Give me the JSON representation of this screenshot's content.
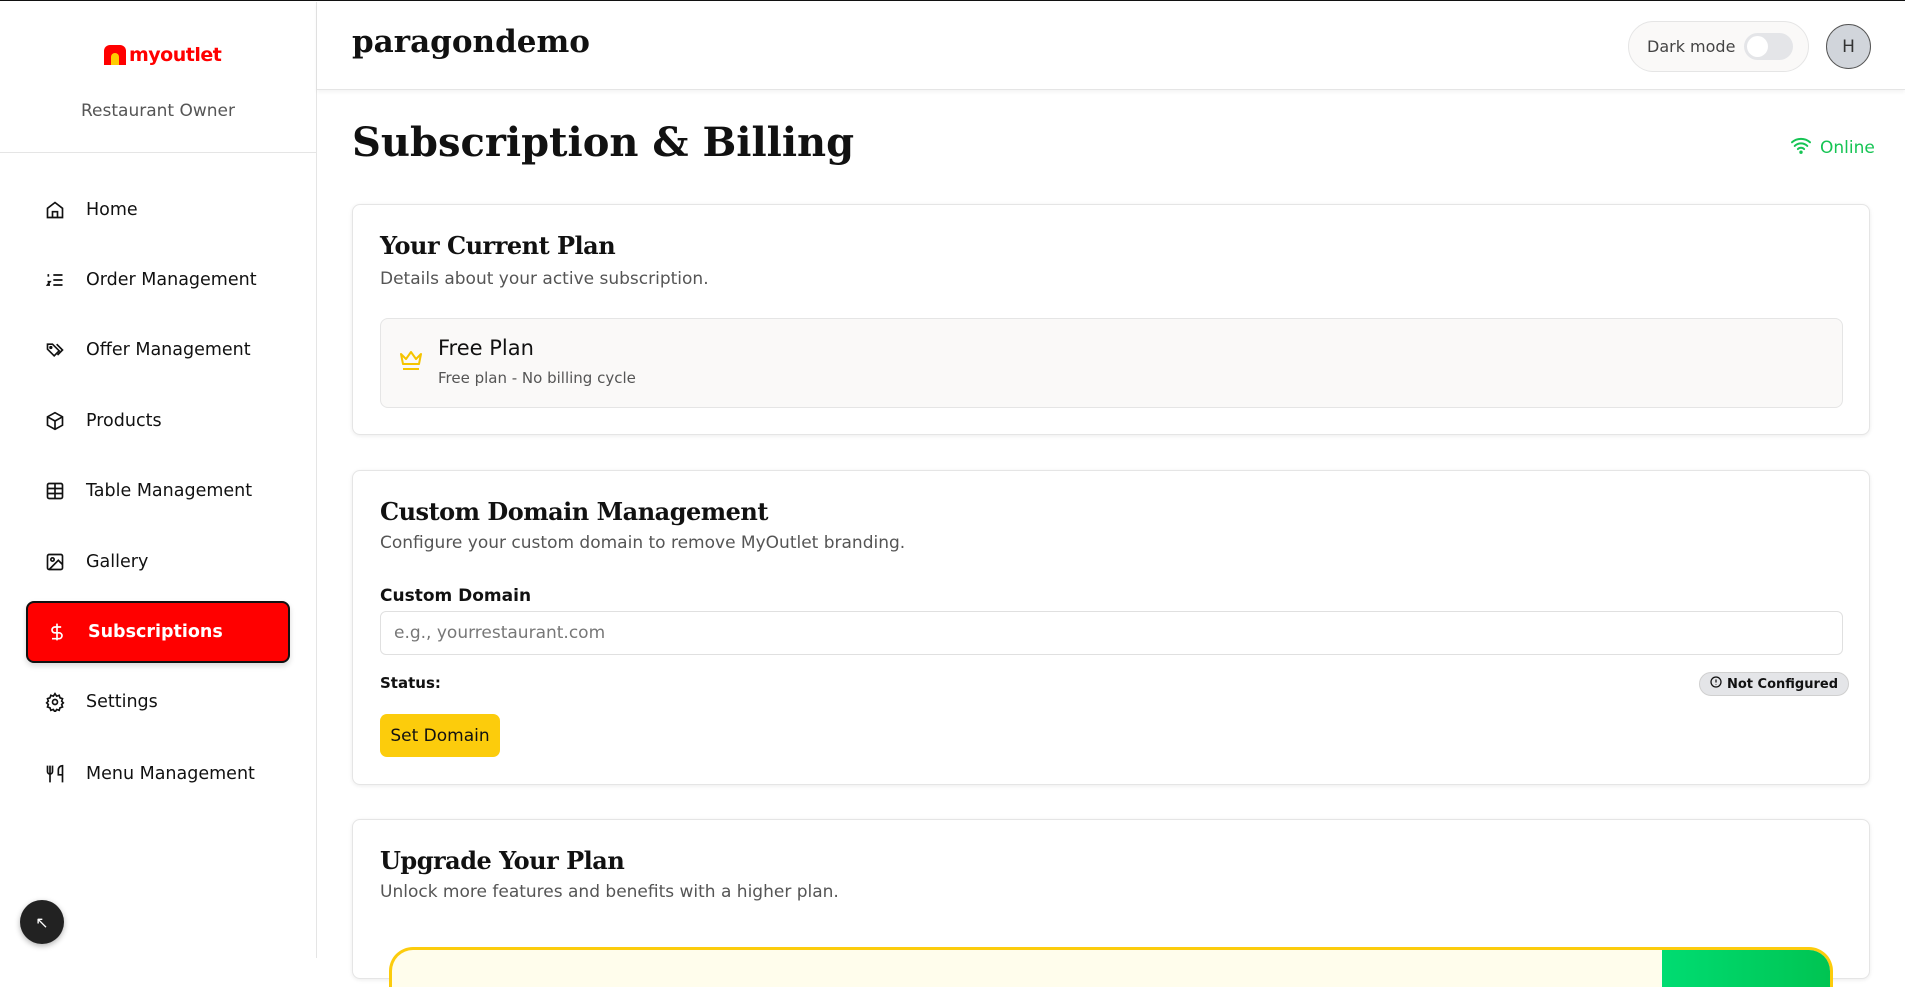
{
  "sidebar": {
    "logo_text": "myoutlet",
    "role": "Restaurant Owner",
    "items": [
      {
        "label": "Home",
        "icon": "home-icon"
      },
      {
        "label": "Order Management",
        "icon": "list-ordered-icon"
      },
      {
        "label": "Offer Management",
        "icon": "tags-icon"
      },
      {
        "label": "Products",
        "icon": "package-icon"
      },
      {
        "label": "Table Management",
        "icon": "table-icon"
      },
      {
        "label": "Gallery",
        "icon": "image-icon"
      },
      {
        "label": "Subscriptions",
        "icon": "dollar-icon",
        "active": true
      },
      {
        "label": "Settings",
        "icon": "gear-icon"
      },
      {
        "label": "Menu Management",
        "icon": "utensils-icon"
      }
    ]
  },
  "header": {
    "title": "paragondemo",
    "dark_mode_label": "Dark mode",
    "dark_mode_on": false,
    "avatar_initial": "H"
  },
  "page": {
    "title": "Subscription & Billing",
    "status": "Online",
    "status_color": "#16c454"
  },
  "current_plan": {
    "title": "Your Current Plan",
    "subtitle": "Details about your active subscription.",
    "plan_name": "Free Plan",
    "plan_desc": "Free plan - No billing cycle"
  },
  "domain": {
    "title": "Custom Domain Management",
    "subtitle": "Configure your custom domain to remove MyOutlet branding.",
    "field_label": "Custom Domain",
    "placeholder": "e.g., yourrestaurant.com",
    "value": "",
    "status_label": "Status:",
    "status_badge": "Not Configured",
    "button": "Set Domain"
  },
  "upgrade": {
    "title": "Upgrade Your Plan",
    "subtitle": "Unlock more features and benefits with a higher plan."
  },
  "colors": {
    "accent": "#ff0000",
    "button": "#fccc0c"
  }
}
